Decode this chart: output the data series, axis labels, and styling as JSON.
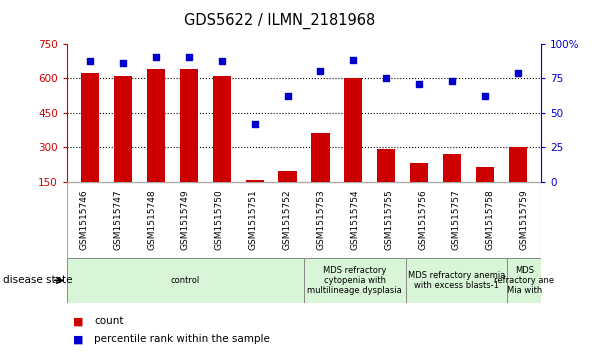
{
  "title": "GDS5622 / ILMN_2181968",
  "samples": [
    "GSM1515746",
    "GSM1515747",
    "GSM1515748",
    "GSM1515749",
    "GSM1515750",
    "GSM1515751",
    "GSM1515752",
    "GSM1515753",
    "GSM1515754",
    "GSM1515755",
    "GSM1515756",
    "GSM1515757",
    "GSM1515758",
    "GSM1515759"
  ],
  "counts": [
    620,
    610,
    640,
    640,
    610,
    155,
    195,
    360,
    600,
    290,
    230,
    270,
    215,
    300
  ],
  "percentiles": [
    87,
    86,
    90,
    90,
    87,
    42,
    62,
    80,
    88,
    75,
    71,
    73,
    62,
    79
  ],
  "ylim_left": [
    150,
    750
  ],
  "ylim_right": [
    0,
    100
  ],
  "yticks_left": [
    150,
    300,
    450,
    600,
    750
  ],
  "yticks_right": [
    0,
    25,
    50,
    75,
    100
  ],
  "bar_color": "#cc0000",
  "dot_color": "#0000cc",
  "bg_color": "#ffffff",
  "sample_bg": "#c8c8c8",
  "sample_border": "#aaaaaa",
  "disease_bg": "#d8f5d8",
  "disease_border": "#888888",
  "grid_dotted_vals": [
    300,
    450,
    600
  ],
  "disease_groups": [
    {
      "label": "control",
      "start": 0,
      "end": 7
    },
    {
      "label": "MDS refractory\ncytopenia with\nmultilineage dysplasia",
      "start": 7,
      "end": 10
    },
    {
      "label": "MDS refractory anemia\nwith excess blasts-1",
      "start": 10,
      "end": 13
    },
    {
      "label": "MDS\nrefractory ane\nMia with",
      "start": 13,
      "end": 14
    }
  ],
  "disease_state_label": "disease state",
  "legend": [
    {
      "label": "count",
      "color": "#cc0000"
    },
    {
      "label": "percentile rank within the sample",
      "color": "#0000cc"
    }
  ]
}
